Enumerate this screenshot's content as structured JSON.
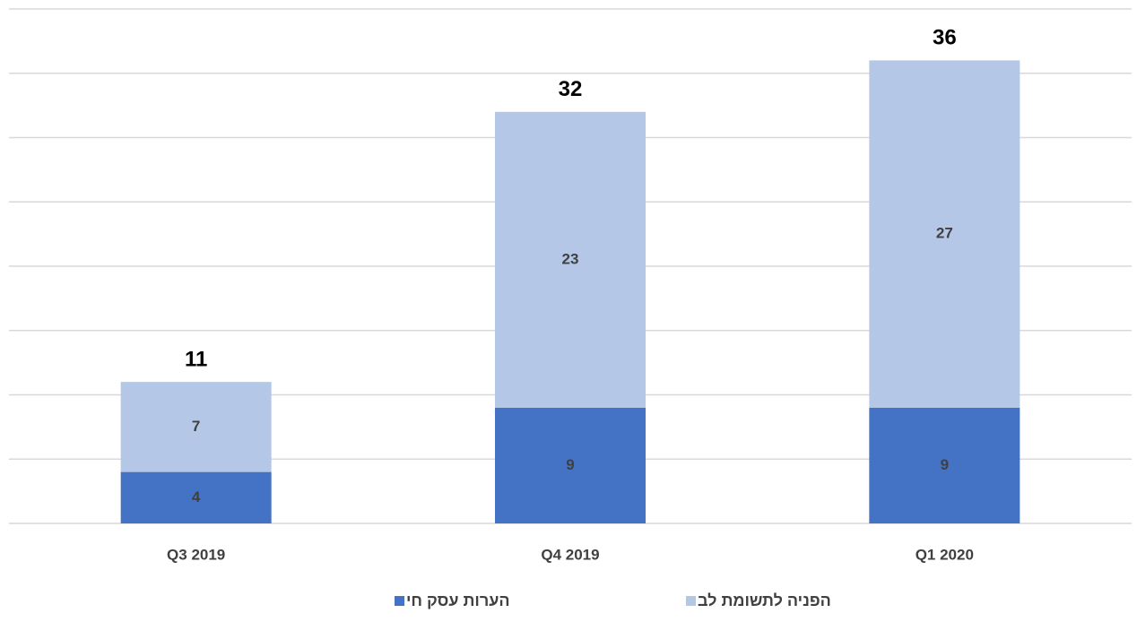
{
  "chart_data": {
    "type": "stacked_bar",
    "categories": [
      "Q3 2019",
      "Q4 2019",
      "Q1 2020"
    ],
    "series": [
      {
        "name": "הערות עסק חי",
        "color": "#4472c4",
        "values": [
          4,
          9,
          9
        ]
      },
      {
        "name": "הפניה לתשומת לב",
        "color": "#b4c7e7",
        "values": [
          7,
          23,
          27
        ]
      }
    ],
    "totals": [
      11,
      32,
      36
    ],
    "ylim": [
      0,
      40
    ],
    "yticks": [
      0,
      5,
      10,
      15,
      20,
      25,
      30,
      35,
      40
    ],
    "grid": true,
    "legend": "bottom"
  }
}
